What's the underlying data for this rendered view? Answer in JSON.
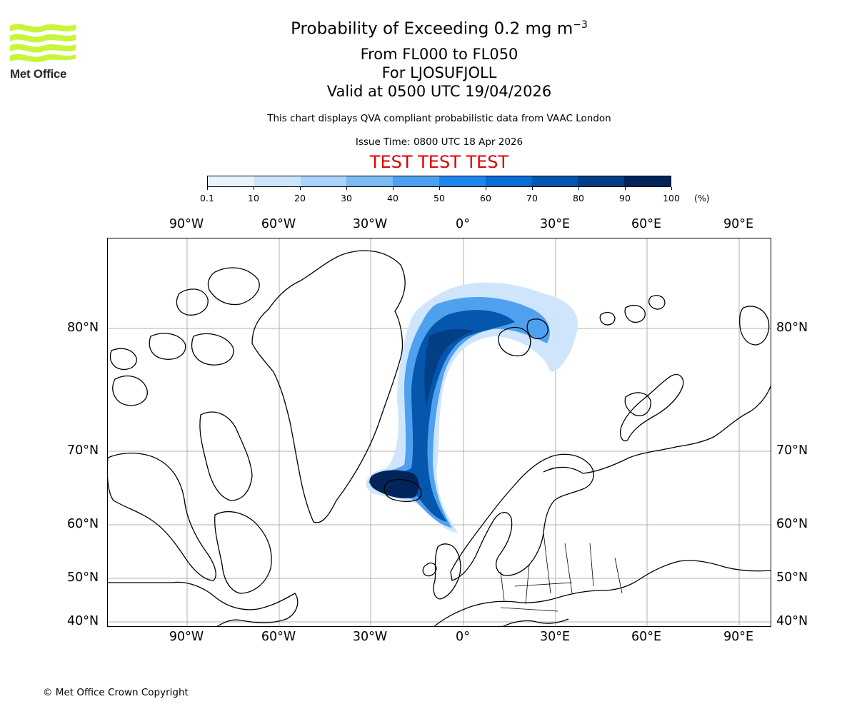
{
  "logo": {
    "text": "Met Office",
    "color": "#c8f53a"
  },
  "titles": {
    "main": "Probability of Exceeding 0.2 mg m",
    "main_sup": "−3",
    "levels": "From FL000 to FL050",
    "location": "For LJOSUFJOLL",
    "valid": "Valid at 0500 UTC 19/04/2026",
    "description": "This chart displays QVA compliant probabilistic data from VAAC London",
    "issue": "Issue Time: 0800 UTC 18 Apr 2026",
    "test": "TEST TEST TEST"
  },
  "colorbar": {
    "ticks": [
      "0.1",
      "10",
      "20",
      "30",
      "40",
      "50",
      "60",
      "70",
      "80",
      "90",
      "100"
    ],
    "unit": "(%)",
    "colors": [
      "#e9f3fd",
      "#cce5fb",
      "#a9d3f8",
      "#7bbaf2",
      "#4ea0ee",
      "#1f86e9",
      "#0b6cd1",
      "#0557ae",
      "#033f85",
      "#01255a"
    ]
  },
  "axes": {
    "lon_labels": [
      "90°W",
      "60°W",
      "30°W",
      "0°",
      "30°E",
      "60°E",
      "90°E"
    ],
    "lat_labels": [
      "80°N",
      "70°N",
      "60°N",
      "50°N",
      "40°N"
    ]
  },
  "footer": {
    "copyright": "© Met Office Crown Copyright"
  }
}
